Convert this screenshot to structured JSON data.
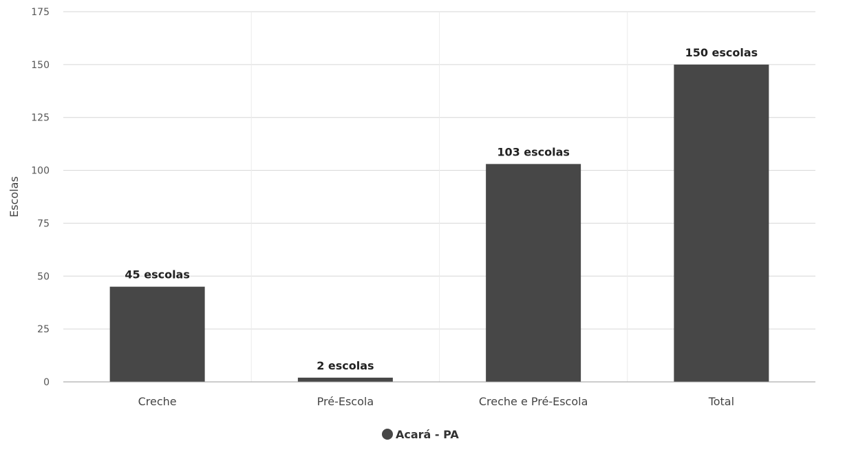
{
  "chart_data": {
    "type": "bar",
    "categories": [
      "Creche",
      "Pré-Escola",
      "Creche e Pré-Escola",
      "Total"
    ],
    "series": [
      {
        "name": "Acará - PA",
        "values": [
          45,
          2,
          103,
          150
        ],
        "data_labels": [
          "45 escolas",
          "2 escolas",
          "103 escolas",
          "150 escolas"
        ]
      }
    ],
    "ylabel": "Escolas",
    "xlabel": "",
    "ylim": [
      0,
      175
    ],
    "yticks": [
      0,
      25,
      50,
      75,
      100,
      125,
      150,
      175
    ],
    "grid": true,
    "legend_position": "bottom-center",
    "colors": {
      "bar": "#474747",
      "grid": "#d6d6d6",
      "axis": "#999999"
    }
  }
}
